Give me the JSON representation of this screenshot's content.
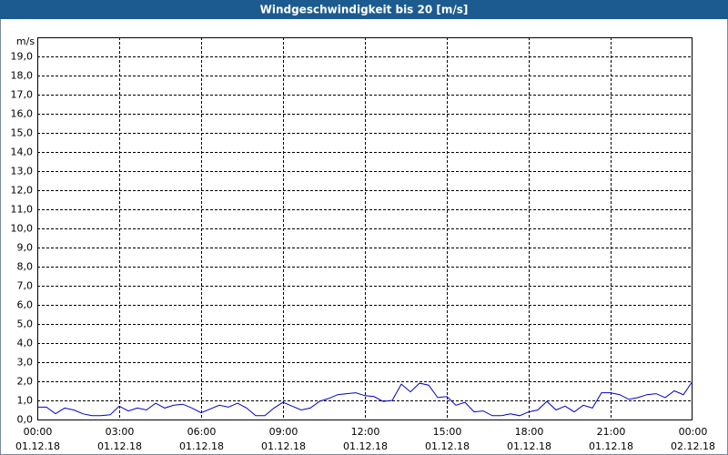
{
  "chart_data": {
    "type": "line",
    "title": "Windgeschwindigkeit bis 20 [m/s]",
    "y_label": "m/s",
    "x": [
      0,
      20,
      40,
      60,
      80,
      100,
      120,
      140,
      160,
      180,
      200,
      220,
      240,
      260,
      280,
      300,
      320,
      340,
      360,
      380,
      400,
      420,
      440,
      460,
      480,
      500,
      520,
      540,
      560,
      580,
      600,
      620,
      640,
      660,
      680,
      700,
      720,
      740,
      760,
      780,
      800,
      820,
      840,
      860,
      880,
      900,
      920,
      940,
      960,
      980,
      1000,
      1020,
      1040,
      1060,
      1080,
      1100,
      1120,
      1140,
      1160,
      1180,
      1200,
      1220,
      1240,
      1260,
      1280,
      1300,
      1320,
      1340,
      1360,
      1380,
      1400,
      1420,
      1440
    ],
    "series": [
      {
        "name": "Windgeschwindigkeit",
        "color": "#0000cc",
        "values": [
          0.65,
          0.65,
          0.3,
          0.6,
          0.5,
          0.3,
          0.2,
          0.2,
          0.25,
          0.7,
          0.45,
          0.6,
          0.5,
          0.85,
          0.6,
          0.75,
          0.8,
          0.6,
          0.35,
          0.55,
          0.75,
          0.65,
          0.85,
          0.6,
          0.2,
          0.2,
          0.6,
          0.9,
          0.7,
          0.5,
          0.6,
          0.95,
          1.1,
          1.3,
          1.35,
          1.4,
          1.25,
          1.2,
          0.95,
          1.0,
          1.85,
          1.45,
          1.9,
          1.8,
          1.15,
          1.2,
          0.75,
          0.9,
          0.4,
          0.45,
          0.2,
          0.2,
          0.3,
          0.2,
          0.4,
          0.5,
          0.95,
          0.5,
          0.7,
          0.4,
          0.75,
          0.6,
          1.4,
          1.4,
          1.3,
          1.05,
          1.15,
          1.3,
          1.35,
          1.15,
          1.5,
          1.3,
          2.0
        ]
      }
    ],
    "xlim": [
      0,
      1440
    ],
    "xticks": [
      {
        "value": 0,
        "label": "00:00",
        "date": "01.12.18"
      },
      {
        "value": 180,
        "label": "03:00",
        "date": "01.12.18"
      },
      {
        "value": 360,
        "label": "06:00",
        "date": "01.12.18"
      },
      {
        "value": 540,
        "label": "09:00",
        "date": "01.12.18"
      },
      {
        "value": 720,
        "label": "12:00",
        "date": "01.12.18"
      },
      {
        "value": 900,
        "label": "15:00",
        "date": "01.12.18"
      },
      {
        "value": 1080,
        "label": "18:00",
        "date": "01.12.18"
      },
      {
        "value": 1260,
        "label": "21:00",
        "date": "01.12.18"
      },
      {
        "value": 1440,
        "label": "00:00",
        "date": "02.12.18"
      }
    ],
    "ylim": [
      0,
      20
    ],
    "yticks": [
      {
        "value": 0,
        "label": "0,0"
      },
      {
        "value": 1,
        "label": "1,0"
      },
      {
        "value": 2,
        "label": "2,0"
      },
      {
        "value": 3,
        "label": "3,0"
      },
      {
        "value": 4,
        "label": "4,0"
      },
      {
        "value": 5,
        "label": "5,0"
      },
      {
        "value": 6,
        "label": "6,0"
      },
      {
        "value": 7,
        "label": "7,0"
      },
      {
        "value": 8,
        "label": "8,0"
      },
      {
        "value": 9,
        "label": "9,0"
      },
      {
        "value": 10,
        "label": "10,0"
      },
      {
        "value": 11,
        "label": "11,0"
      },
      {
        "value": 12,
        "label": "12,0"
      },
      {
        "value": 13,
        "label": "13,0"
      },
      {
        "value": 14,
        "label": "14,0"
      },
      {
        "value": 15,
        "label": "15,0"
      },
      {
        "value": 16,
        "label": "16,0"
      },
      {
        "value": 17,
        "label": "17,0"
      },
      {
        "value": 18,
        "label": "18,0"
      },
      {
        "value": 19,
        "label": "19,0"
      }
    ],
    "grid": true
  }
}
